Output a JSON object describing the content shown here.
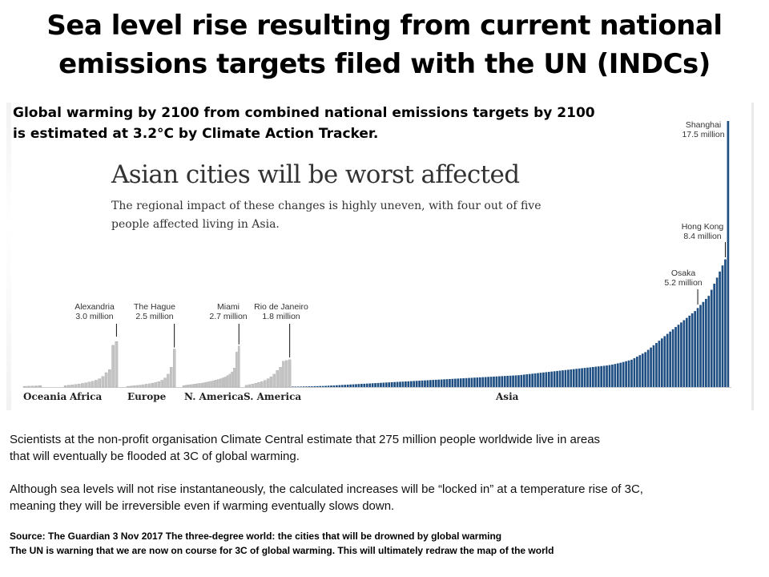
{
  "slide": {
    "title_lines": [
      "Sea level rise resulting from current national",
      "emissions targets filed with the UN (INDCs)"
    ],
    "intro_lines": [
      "Global warming by 2100  from combined national emissions targets by 2100",
      "is estimated at 3.2°C by Climate Action Tracker."
    ],
    "paragraph_1": [
      "Scientists at the non-profit organisation Climate Central estimate that 275 million people worldwide live in areas",
      "that will eventually be flooded at 3C of global warming."
    ],
    "paragraph_2": [
      "Although sea levels will not rise instantaneously, the calculated increases will be “locked in” at a temperature rise of 3C,",
      "meaning they will be irreversible even if warming eventually slows down."
    ],
    "source_lines": [
      "Source: The Guardian 3 Nov 2017  The three-degree world: the cities that will be drowned by global warming",
      "The UN is warning that we are now on course for 3C of global warming. This will ultimately redraw the map of the world"
    ]
  },
  "chart_data": {
    "type": "bar",
    "title": "Asian cities will be worst affected",
    "subtitle_lines": [
      "The regional impact of these changes is highly uneven, with four out of five",
      "people affected living in Asia."
    ],
    "ylim": [
      0,
      17.5
    ],
    "unit": "million",
    "colors": {
      "other": "#c4c4c4",
      "asia": "#1f4f82"
    },
    "regions": [
      {
        "name": "Oceania",
        "values": [
          0.05,
          0.06,
          0.07,
          0.08,
          0.1
        ]
      },
      {
        "name": "Africa",
        "values": [
          0.1,
          0.12,
          0.14,
          0.17,
          0.2,
          0.24,
          0.28,
          0.33,
          0.38,
          0.45,
          0.55,
          0.7,
          0.95,
          1.15,
          2.75,
          3.0
        ]
      },
      {
        "name": "Europe",
        "values": [
          0.05,
          0.07,
          0.09,
          0.11,
          0.13,
          0.16,
          0.19,
          0.22,
          0.26,
          0.3,
          0.36,
          0.45,
          0.6,
          0.85,
          1.3,
          2.5
        ]
      },
      {
        "name": "N. America",
        "values": [
          0.1,
          0.12,
          0.14,
          0.16,
          0.18,
          0.2,
          0.22,
          0.24,
          0.26,
          0.29,
          0.32,
          0.35,
          0.38,
          0.42,
          0.46,
          0.5,
          0.55,
          0.6,
          0.66,
          0.75,
          0.85,
          1.0,
          1.25,
          2.3,
          2.7
        ]
      },
      {
        "name": "S. America",
        "values": [
          0.12,
          0.16,
          0.2,
          0.25,
          0.3,
          0.36,
          0.44,
          0.55,
          0.68,
          0.85,
          1.1,
          1.3,
          1.7,
          1.75,
          1.8
        ]
      },
      {
        "name": "Asia",
        "values": [
          0.02,
          0.02,
          0.03,
          0.03,
          0.04,
          0.04,
          0.05,
          0.05,
          0.06,
          0.06,
          0.07,
          0.07,
          0.08,
          0.09,
          0.1,
          0.11,
          0.12,
          0.13,
          0.14,
          0.15,
          0.16,
          0.17,
          0.18,
          0.19,
          0.2,
          0.21,
          0.22,
          0.23,
          0.24,
          0.25,
          0.26,
          0.27,
          0.28,
          0.29,
          0.3,
          0.31,
          0.32,
          0.33,
          0.34,
          0.35,
          0.36,
          0.37,
          0.38,
          0.39,
          0.4,
          0.41,
          0.42,
          0.43,
          0.44,
          0.45,
          0.46,
          0.47,
          0.48,
          0.49,
          0.5,
          0.51,
          0.52,
          0.53,
          0.54,
          0.55,
          0.56,
          0.57,
          0.58,
          0.59,
          0.6,
          0.61,
          0.62,
          0.63,
          0.64,
          0.65,
          0.66,
          0.67,
          0.68,
          0.69,
          0.7,
          0.71,
          0.72,
          0.73,
          0.74,
          0.75,
          0.76,
          0.77,
          0.78,
          0.8,
          0.82,
          0.84,
          0.86,
          0.88,
          0.9,
          0.92,
          0.94,
          0.96,
          0.98,
          1.0,
          1.02,
          1.04,
          1.06,
          1.08,
          1.1,
          1.12,
          1.14,
          1.16,
          1.18,
          1.2,
          1.22,
          1.24,
          1.26,
          1.28,
          1.3,
          1.32,
          1.34,
          1.36,
          1.38,
          1.4,
          1.42,
          1.45,
          1.48,
          1.52,
          1.56,
          1.6,
          1.65,
          1.7,
          1.75,
          1.8,
          1.9,
          2.0,
          2.1,
          2.2,
          2.3,
          2.45,
          2.6,
          2.75,
          2.9,
          3.05,
          3.2,
          3.35,
          3.5,
          3.65,
          3.8,
          3.95,
          4.1,
          4.25,
          4.4,
          4.55,
          4.7,
          4.85,
          5.0,
          5.2,
          5.4,
          5.6,
          5.8,
          6.0,
          6.4,
          6.8,
          7.2,
          7.6,
          8.0,
          8.4,
          17.5
        ]
      }
    ],
    "annotations": [
      {
        "city": "Alexandria",
        "value": "3.0 million",
        "region": "Africa",
        "bar": 15
      },
      {
        "city": "The Hague",
        "value": "2.5 million",
        "region": "Europe",
        "bar": 15
      },
      {
        "city": "Miami",
        "value": "2.7 million",
        "region": "N. America",
        "bar": 24
      },
      {
        "city": "Rio de Janeiro",
        "value": "1.8 million",
        "region": "S. America",
        "bar": 14
      },
      {
        "city": "Osaka",
        "value": "5.2 million",
        "region": "Asia",
        "bar": 147
      },
      {
        "city": "Hong Kong",
        "value": "8.4 million",
        "region": "Asia",
        "bar": 157
      },
      {
        "city": "Shanghai",
        "value": "17.5 million",
        "region": "Asia",
        "bar": 158
      }
    ]
  }
}
